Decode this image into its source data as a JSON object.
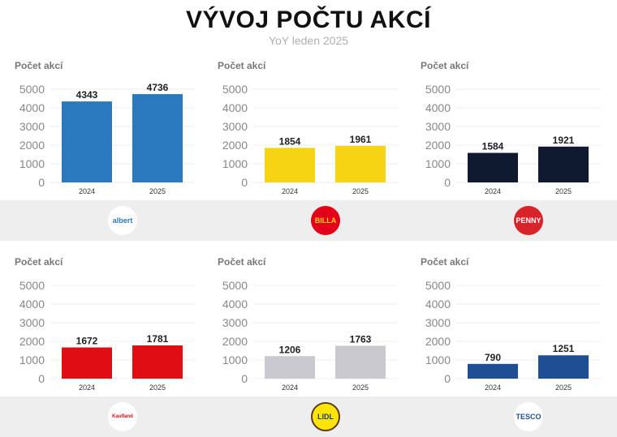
{
  "title": "VÝVOJ POČTU AKCÍ",
  "subtitle": "YoY leden 2025",
  "chart_data": [
    {
      "type": "bar",
      "title": "Počet akcí",
      "brand": "albert",
      "categories": [
        "2024",
        "2025"
      ],
      "values": [
        4343,
        4736
      ],
      "ylim": [
        0,
        5000
      ],
      "yticks": [
        "0",
        "1000",
        "2000",
        "3000",
        "4000",
        "5000"
      ],
      "color": "#2a79bd",
      "grid": true
    },
    {
      "type": "bar",
      "title": "Počet akcí",
      "brand": "BILLA",
      "categories": [
        "2024",
        "2025"
      ],
      "values": [
        1854,
        1961
      ],
      "ylim": [
        0,
        5000
      ],
      "yticks": [
        "0",
        "1000",
        "2000",
        "3000",
        "4000",
        "5000"
      ],
      "color": "#f6d414",
      "grid": true
    },
    {
      "type": "bar",
      "title": "Počet akcí",
      "brand": "PENNY",
      "categories": [
        "2024",
        "2025"
      ],
      "values": [
        1584,
        1921
      ],
      "ylim": [
        0,
        5000
      ],
      "yticks": [
        "0",
        "1000",
        "2000",
        "3000",
        "4000",
        "5000"
      ],
      "color": "#0f1a2e",
      "grid": true
    },
    {
      "type": "bar",
      "title": "Počet akcí",
      "brand": "Kaufland",
      "categories": [
        "2024",
        "2025"
      ],
      "values": [
        1672,
        1781
      ],
      "ylim": [
        0,
        5000
      ],
      "yticks": [
        "0",
        "1000",
        "2000",
        "3000",
        "4000",
        "5000"
      ],
      "color": "#e00d12",
      "grid": true
    },
    {
      "type": "bar",
      "title": "Počet akcí",
      "brand": "LIDL",
      "categories": [
        "2024",
        "2025"
      ],
      "values": [
        1206,
        1763
      ],
      "ylim": [
        0,
        5000
      ],
      "yticks": [
        "0",
        "1000",
        "2000",
        "3000",
        "4000",
        "5000"
      ],
      "color": "#c9c9ce",
      "grid": true
    },
    {
      "type": "bar",
      "title": "Počet akcí",
      "brand": "TESCO",
      "categories": [
        "2024",
        "2025"
      ],
      "values": [
        790,
        1251
      ],
      "ylim": [
        0,
        5000
      ],
      "yticks": [
        "0",
        "1000",
        "2000",
        "3000",
        "4000",
        "5000"
      ],
      "color": "#1f4e95",
      "grid": true
    }
  ],
  "logos": [
    {
      "fg": "#2a79bd",
      "bg": "#ffffff"
    },
    {
      "fg": "#f6d414",
      "bg": "#e2001a"
    },
    {
      "fg": "#ffffff",
      "bg": "#d9232a"
    },
    {
      "fg": "#e00d12",
      "bg": "#ffffff"
    },
    {
      "fg": "#1a3b8c",
      "bg": "#ffe500"
    },
    {
      "fg": "#1f4e95",
      "bg": "#ffffff"
    }
  ]
}
